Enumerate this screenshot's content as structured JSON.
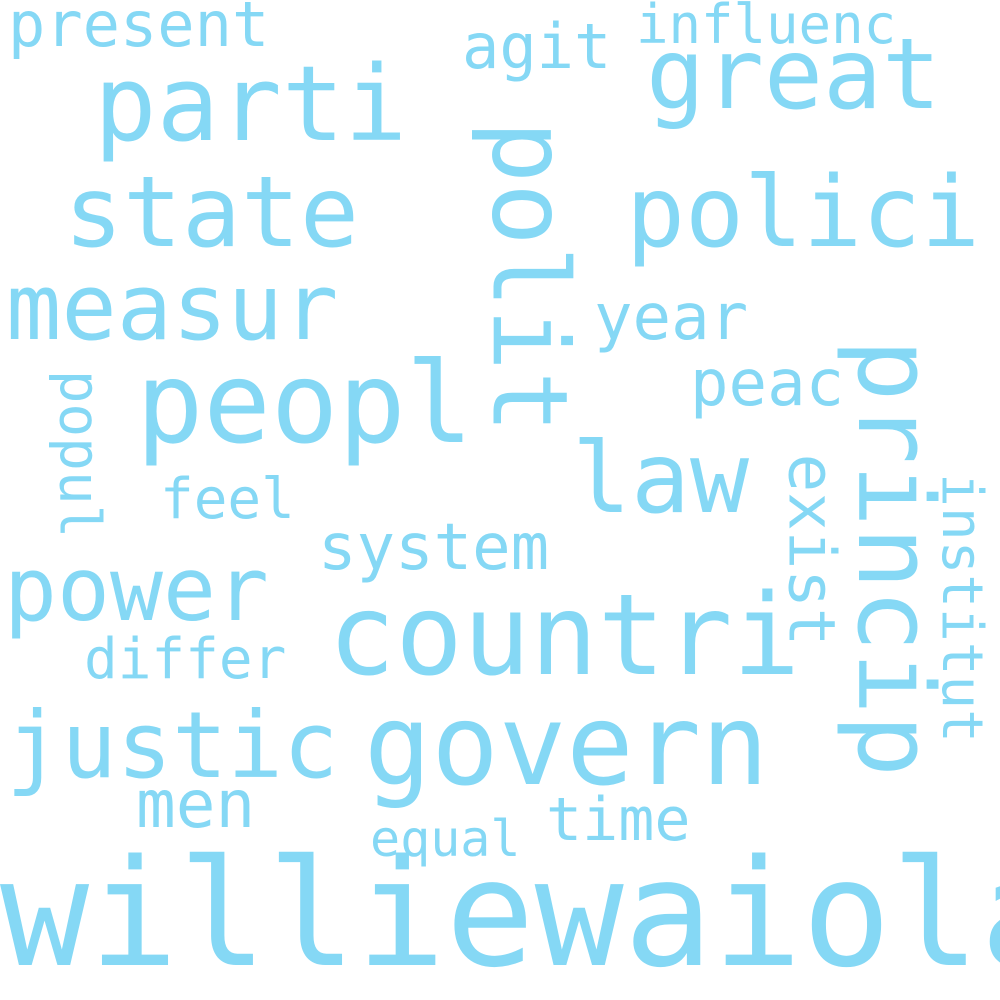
{
  "words": {
    "williewaiola": "williewaiola",
    "countri": "countri",
    "govern": "govern",
    "peopl": "peopl",
    "parti": "parti",
    "polit": "polit",
    "princip": "princip",
    "state": "state",
    "polici": "polici",
    "great": "great",
    "measur": "measur",
    "law": "law",
    "justic": "justic",
    "power": "power",
    "system": "system",
    "present": "present",
    "agit": "agit",
    "influenc": "influenc",
    "year": "year",
    "peac": "peac",
    "exist": "exist",
    "institut": "institut",
    "popul": "popul",
    "feel": "feel",
    "differ": "differ",
    "men": "men",
    "equal": "equal",
    "time": "time"
  },
  "colors": {
    "word": "#85d8f5",
    "background": "#ffffff"
  }
}
